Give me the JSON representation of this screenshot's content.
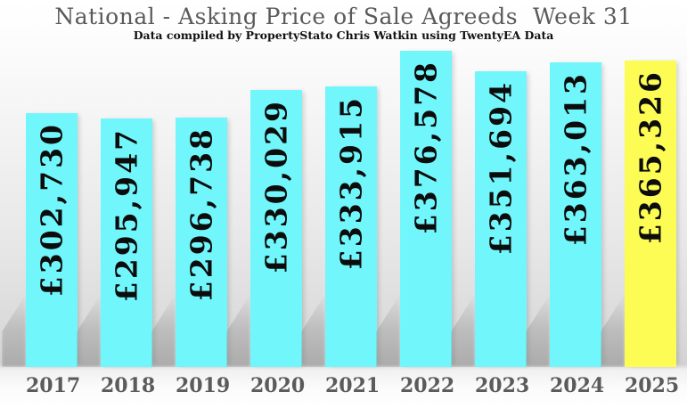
{
  "header": {
    "title": "National - Asking Price of Sale Agreeds  Week 31",
    "subtitle": "Data compiled by PropertyStato Chris Watkin using TwentyEA Data"
  },
  "chart_data": {
    "type": "bar",
    "title": "National - Asking Price of Sale Agreeds  Week 31",
    "subtitle": "Data compiled by PropertyStato Chris Watkin using TwentyEA Data",
    "categories": [
      "2017",
      "2018",
      "2019",
      "2020",
      "2021",
      "2022",
      "2023",
      "2024",
      "2025"
    ],
    "values": [
      302730,
      295947,
      296738,
      330029,
      333915,
      376578,
      351694,
      363013,
      365326
    ],
    "value_labels": [
      "£302,730",
      "£295,947",
      "£296,738",
      "£330,029",
      "£333,915",
      "£376,578",
      "£351,694",
      "£363,013",
      "£365,326"
    ],
    "xlabel": "",
    "ylabel": "",
    "ylim": [
      0,
      376578
    ],
    "grid": false,
    "legend": null,
    "highlight_category": "2025",
    "colors": {
      "bar_default": "#71F7FB",
      "bar_highlight": "#FCFC55",
      "value_text": "#0c0c0c",
      "axis_text": "#5b5b5b",
      "title_text": "#5a5a5a",
      "subtitle_text": "#111111"
    }
  }
}
